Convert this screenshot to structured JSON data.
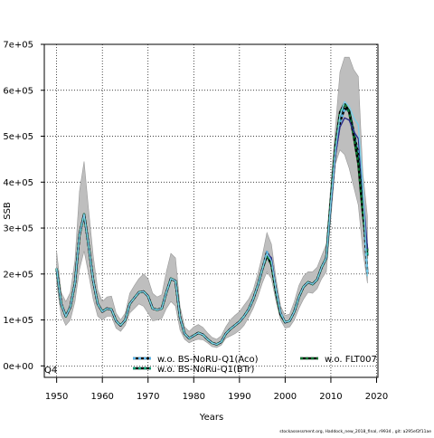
{
  "chart_data": {
    "type": "line",
    "xlabel": "Years",
    "ylabel": "SSB",
    "xlim": [
      1947.3,
      2020.3
    ],
    "ylim": [
      -25000,
      700000
    ],
    "x_ticks": [
      1950,
      1960,
      1970,
      1980,
      1990,
      2000,
      2010,
      2020
    ],
    "x_tick_labels": [
      "1950",
      "1960",
      "1970",
      "1980",
      "1990",
      "2000",
      "2010",
      "2020"
    ],
    "y_ticks": [
      0,
      100000,
      200000,
      300000,
      400000,
      500000,
      600000,
      700000
    ],
    "y_tick_labels": [
      "0e+00",
      "1e+05",
      "2e+05",
      "3e+05",
      "4e+05",
      "5e+05",
      "6e+05",
      "7e+05"
    ],
    "grid": true,
    "grid_style": "dotted",
    "legend_position": "bottom",
    "corner_label": "Q4",
    "footer": "stockassessment.org, Haddock_new_2018_final, r9934 , git: a295ef2f11ae",
    "colors": {
      "band": "#bebebe",
      "band_edge": "#999999",
      "frame": "#000000",
      "grid": "#000000"
    },
    "confidence_band": {
      "x": [
        1950,
        1951,
        1952,
        1953,
        1954,
        1955,
        1956,
        1957,
        1958,
        1959,
        1960,
        1961,
        1962,
        1963,
        1964,
        1965,
        1966,
        1967,
        1968,
        1969,
        1970,
        1971,
        1972,
        1973,
        1974,
        1975,
        1976,
        1977,
        1978,
        1979,
        1980,
        1981,
        1982,
        1983,
        1984,
        1985,
        1986,
        1987,
        1988,
        1989,
        1990,
        1991,
        1992,
        1993,
        1994,
        1995,
        1996,
        1997,
        1998,
        1999,
        2000,
        2001,
        2002,
        2003,
        2004,
        2005,
        2006,
        2007,
        2008,
        2009,
        2010,
        2011,
        2012,
        2013,
        2014,
        2015,
        2016,
        2017,
        2018
      ],
      "lower": [
        180000,
        110000,
        88000,
        100000,
        140000,
        210000,
        250000,
        200000,
        145000,
        108000,
        100000,
        108000,
        108000,
        82000,
        75000,
        88000,
        115000,
        125000,
        135000,
        130000,
        115000,
        98000,
        100000,
        103000,
        125000,
        140000,
        130000,
        78000,
        58000,
        50000,
        55000,
        58000,
        57000,
        50000,
        42000,
        40000,
        45000,
        60000,
        65000,
        70000,
        77000,
        88000,
        105000,
        125000,
        150000,
        180000,
        205000,
        190000,
        140000,
        100000,
        82000,
        85000,
        100000,
        125000,
        145000,
        160000,
        158000,
        168000,
        190000,
        205000,
        320000,
        440000,
        470000,
        460000,
        430000,
        390000,
        350000,
        250000,
        180000
      ],
      "upper": [
        250000,
        160000,
        140000,
        160000,
        230000,
        380000,
        445000,
        340000,
        240000,
        165000,
        140000,
        150000,
        152000,
        115000,
        100000,
        115000,
        158000,
        175000,
        190000,
        200000,
        190000,
        158000,
        150000,
        155000,
        205000,
        245000,
        235000,
        130000,
        85000,
        75000,
        85000,
        90000,
        84000,
        72000,
        62000,
        58000,
        65000,
        85000,
        100000,
        110000,
        118000,
        132000,
        145000,
        165000,
        200000,
        240000,
        290000,
        265000,
        190000,
        130000,
        110000,
        113000,
        140000,
        175000,
        195000,
        205000,
        205000,
        215000,
        240000,
        265000,
        395000,
        520000,
        640000,
        672000,
        672000,
        645000,
        630000,
        420000,
        325000
      ]
    },
    "series": [
      {
        "name": "w.o. BS-NoRU-Q1(Aco)",
        "color": "#000000",
        "dash_color": "#56b4e9",
        "x": [
          1950,
          1951,
          1952,
          1953,
          1954,
          1955,
          1956,
          1957,
          1958,
          1959,
          1960,
          1961,
          1962,
          1963,
          1964,
          1965,
          1966,
          1967,
          1968,
          1969,
          1970,
          1971,
          1972,
          1973,
          1974,
          1975,
          1976,
          1977,
          1978,
          1979,
          1980,
          1981,
          1982,
          1983,
          1984,
          1985,
          1986,
          1987,
          1988,
          1989,
          1990,
          1991,
          1992,
          1993,
          1994,
          1995,
          1996,
          1997,
          1998,
          1999,
          2000,
          2001,
          2002,
          2003,
          2004,
          2005,
          2006,
          2007,
          2008,
          2009,
          2010,
          2011,
          2012,
          2013,
          2014,
          2015,
          2016,
          2017,
          2018
        ],
        "values": [
          212000,
          135000,
          108000,
          128000,
          180000,
          285000,
          330000,
          262000,
          185000,
          135000,
          118000,
          125000,
          123000,
          98000,
          88000,
          100000,
          135000,
          148000,
          160000,
          162000,
          152000,
          125000,
          122000,
          125000,
          160000,
          190000,
          185000,
          105000,
          70000,
          60000,
          66000,
          72000,
          68000,
          58000,
          50000,
          47000,
          52000,
          70000,
          80000,
          88000,
          96000,
          108000,
          123000,
          145000,
          175000,
          210000,
          248000,
          228000,
          165000,
          115000,
          95000,
          98000,
          118000,
          150000,
          172000,
          182000,
          178000,
          188000,
          215000,
          235000,
          355000,
          465000,
          530000,
          560000,
          555000,
          510000,
          460000,
          350000,
          200000
        ]
      },
      {
        "name": "w.o. BS-NoRu-Q1(BTr)",
        "color": "#000000",
        "dash_color": "#009e73",
        "x": [
          1950,
          1951,
          1952,
          1953,
          1954,
          1955,
          1956,
          1957,
          1958,
          1959,
          1960,
          1961,
          1962,
          1963,
          1964,
          1965,
          1966,
          1967,
          1968,
          1969,
          1970,
          1971,
          1972,
          1973,
          1974,
          1975,
          1976,
          1977,
          1978,
          1979,
          1980,
          1981,
          1982,
          1983,
          1984,
          1985,
          1986,
          1987,
          1988,
          1989,
          1990,
          1991,
          1992,
          1993,
          1994,
          1995,
          1996,
          1997,
          1998,
          1999,
          2000,
          2001,
          2002,
          2003,
          2004,
          2005,
          2006,
          2007,
          2008,
          2009,
          2010,
          2011,
          2012,
          2013,
          2014,
          2015,
          2016,
          2017,
          2018
        ],
        "values": [
          212000,
          135000,
          108000,
          128000,
          180000,
          285000,
          330000,
          262000,
          185000,
          135000,
          118000,
          125000,
          123000,
          98000,
          88000,
          100000,
          135000,
          148000,
          160000,
          162000,
          152000,
          125000,
          122000,
          125000,
          160000,
          190000,
          185000,
          105000,
          70000,
          60000,
          66000,
          72000,
          68000,
          58000,
          50000,
          47000,
          52000,
          70000,
          80000,
          88000,
          96000,
          108000,
          123000,
          145000,
          175000,
          210000,
          240000,
          220000,
          160000,
          112000,
          95000,
          98000,
          118000,
          150000,
          172000,
          182000,
          178000,
          188000,
          215000,
          235000,
          360000,
          475000,
          548000,
          570000,
          555000,
          505000,
          450000,
          340000,
          240000
        ]
      },
      {
        "name": "w.o. FLT007",
        "color": "#000000",
        "dash_color": "#117733",
        "x": [
          1950,
          1951,
          1952,
          1953,
          1954,
          1955,
          1956,
          1957,
          1958,
          1959,
          1960,
          1961,
          1962,
          1963,
          1964,
          1965,
          1966,
          1967,
          1968,
          1969,
          1970,
          1971,
          1972,
          1973,
          1974,
          1975,
          1976,
          1977,
          1978,
          1979,
          1980,
          1981,
          1982,
          1983,
          1984,
          1985,
          1986,
          1987,
          1988,
          1989,
          1990,
          1991,
          1992,
          1993,
          1994,
          1995,
          1996,
          1997,
          1998,
          1999,
          2000,
          2001,
          2002,
          2003,
          2004,
          2005,
          2006,
          2007,
          2008,
          2009,
          2010,
          2011,
          2012,
          2013,
          2014,
          2015,
          2016,
          2017,
          2018
        ],
        "values": [
          212000,
          135000,
          108000,
          128000,
          180000,
          285000,
          330000,
          262000,
          185000,
          135000,
          118000,
          125000,
          123000,
          98000,
          88000,
          100000,
          135000,
          148000,
          160000,
          162000,
          152000,
          125000,
          122000,
          125000,
          160000,
          190000,
          185000,
          105000,
          70000,
          60000,
          66000,
          72000,
          68000,
          58000,
          50000,
          47000,
          52000,
          70000,
          80000,
          88000,
          96000,
          108000,
          123000,
          145000,
          175000,
          210000,
          242000,
          222000,
          160000,
          112000,
          95000,
          98000,
          118000,
          150000,
          172000,
          182000,
          178000,
          188000,
          215000,
          235000,
          360000,
          480000,
          552000,
          572000,
          552000,
          500000,
          440000,
          330000,
          250000
        ]
      },
      {
        "name": "",
        "color": "#2a2a8a",
        "x": [
          1950,
          1951,
          1952,
          1953,
          1954,
          1955,
          1956,
          1957,
          1958,
          1959,
          1960,
          1961,
          1962,
          1963,
          1964,
          1965,
          1966,
          1967,
          1968,
          1969,
          1970,
          1971,
          1972,
          1973,
          1974,
          1975,
          1976,
          1977,
          1978,
          1979,
          1980,
          1981,
          1982,
          1983,
          1984,
          1985,
          1986,
          1987,
          1988,
          1989,
          1990,
          1991,
          1992,
          1993,
          1994,
          1995,
          1996,
          1997,
          1998,
          1999,
          2000,
          2001,
          2002,
          2003,
          2004,
          2005,
          2006,
          2007,
          2008,
          2009,
          2010,
          2011,
          2012,
          2013,
          2014,
          2015,
          2016,
          2017,
          2018
        ],
        "values": [
          212000,
          135000,
          108000,
          128000,
          180000,
          285000,
          330000,
          262000,
          185000,
          135000,
          118000,
          125000,
          123000,
          98000,
          88000,
          100000,
          135000,
          148000,
          160000,
          162000,
          152000,
          125000,
          122000,
          125000,
          160000,
          190000,
          185000,
          105000,
          70000,
          60000,
          66000,
          72000,
          68000,
          58000,
          50000,
          47000,
          52000,
          70000,
          80000,
          88000,
          96000,
          108000,
          123000,
          145000,
          175000,
          210000,
          245000,
          235000,
          165000,
          114000,
          95000,
          98000,
          118000,
          150000,
          172000,
          182000,
          178000,
          188000,
          215000,
          235000,
          350000,
          460000,
          520000,
          540000,
          535000,
          510000,
          495000,
          380000,
          255000
        ]
      },
      {
        "name": "",
        "color": "#7fd0e8",
        "x": [
          1950,
          1951,
          1952,
          1953,
          1954,
          1955,
          1956,
          1957,
          1958,
          1959,
          1960,
          1961,
          1962,
          1963,
          1964,
          1965,
          1966,
          1967,
          1968,
          1969,
          1970,
          1971,
          1972,
          1973,
          1974,
          1975,
          1976,
          1977,
          1978,
          1979,
          1980,
          1981,
          1982,
          1983,
          1984,
          1985,
          1986,
          1987,
          1988,
          1989,
          1990,
          1991,
          1992,
          1993,
          1994,
          1995,
          1996,
          1997,
          1998,
          1999,
          2000,
          2001,
          2002,
          2003,
          2004,
          2005,
          2006,
          2007,
          2008,
          2009,
          2010,
          2011,
          2012,
          2013,
          2014,
          2015,
          2016,
          2017,
          2018
        ],
        "values": [
          212000,
          135000,
          108000,
          128000,
          180000,
          285000,
          330000,
          262000,
          185000,
          135000,
          118000,
          125000,
          123000,
          98000,
          88000,
          100000,
          135000,
          148000,
          160000,
          162000,
          152000,
          125000,
          122000,
          125000,
          160000,
          190000,
          185000,
          105000,
          70000,
          60000,
          66000,
          72000,
          68000,
          58000,
          50000,
          47000,
          52000,
          70000,
          80000,
          88000,
          96000,
          108000,
          123000,
          145000,
          175000,
          210000,
          245000,
          228000,
          165000,
          115000,
          95000,
          98000,
          118000,
          150000,
          172000,
          182000,
          178000,
          188000,
          215000,
          235000,
          355000,
          470000,
          545000,
          575000,
          565000,
          540000,
          525000,
          390000,
          195000
        ]
      }
    ]
  }
}
